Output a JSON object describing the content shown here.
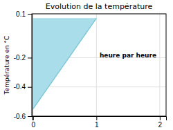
{
  "chart_data": {
    "type": "area",
    "title": "Evolution de la température",
    "y_label": "Température en °C",
    "series": [
      {
        "type": "area",
        "color": "#a8dde9",
        "x": [
          0,
          0,
          1
        ],
        "values": [
          0.07,
          -0.55,
          0.07
        ]
      },
      {
        "type": "line",
        "color": "#7ec8d8",
        "x": [
          0,
          1
        ],
        "values": [
          -0.55,
          0.07
        ]
      }
    ],
    "xlim": [
      -0.02,
      2.1
    ],
    "ylim": [
      -0.6,
      0.1
    ],
    "xticks": [
      0,
      1,
      2
    ],
    "yticks": [
      0.1,
      -0.2,
      -0.4,
      -0.6
    ],
    "grid": true,
    "annotations": [
      {
        "text": "heure par heure",
        "x": 1.05,
        "y": -0.17
      }
    ]
  }
}
